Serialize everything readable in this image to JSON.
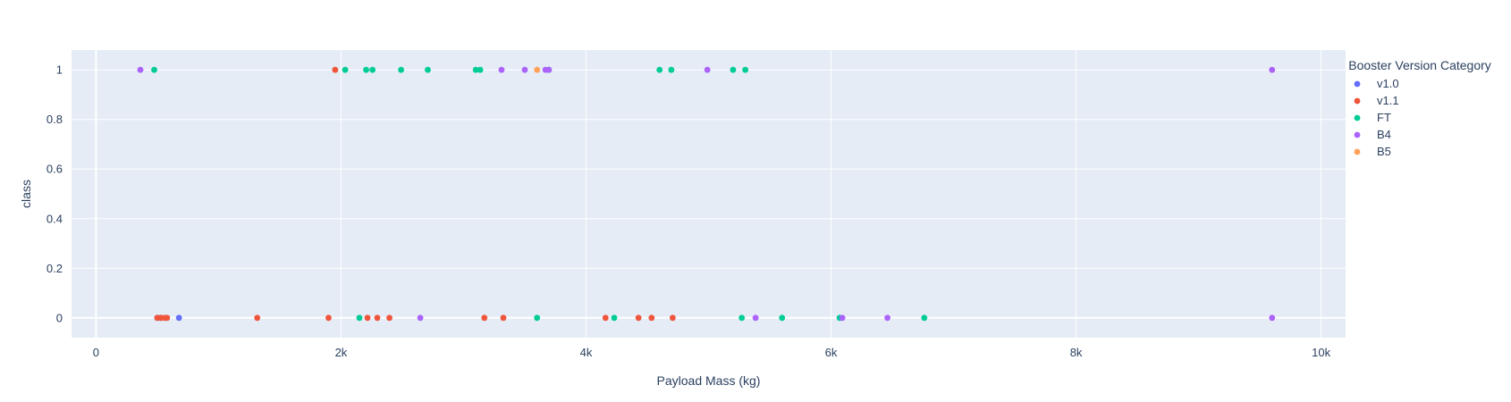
{
  "chart_data": {
    "type": "scatter",
    "title": "",
    "xlabel": "Payload Mass (kg)",
    "ylabel": "class",
    "xlim": [
      -200,
      10200
    ],
    "ylim": [
      -0.08,
      1.08
    ],
    "x_ticks": [
      0,
      2000,
      4000,
      6000,
      8000,
      10000
    ],
    "x_tick_labels": [
      "0",
      "2k",
      "4k",
      "6k",
      "8k",
      "10k"
    ],
    "y_ticks": [
      0,
      0.2,
      0.4,
      0.6,
      0.8,
      1
    ],
    "y_tick_labels": [
      "0",
      "0.2",
      "0.4",
      "0.6",
      "0.8",
      "1"
    ],
    "grid": true,
    "background_color": "#e5ecf6",
    "legend_title": "Booster Version Category",
    "legend_position": "right",
    "series": [
      {
        "name": "v1.0",
        "color": "#636efa",
        "x": [
          525,
          677,
          500
        ],
        "y": [
          0,
          0,
          0
        ]
      },
      {
        "name": "v1.1",
        "color": "#EF553B",
        "x": [
          500,
          530,
          560,
          580,
          1316,
          1898,
          1952,
          2216,
          2296,
          2395,
          3170,
          3325,
          4159,
          4428,
          4535,
          4707
        ],
        "y": [
          0,
          0,
          0,
          0,
          0,
          0,
          1,
          0,
          0,
          0,
          0,
          0,
          0,
          0,
          0,
          0
        ]
      },
      {
        "name": "FT",
        "color": "#00cc96",
        "x": [
          475,
          2034,
          2205,
          2257,
          2490,
          2708,
          3100,
          3136,
          3696,
          4600,
          4696,
          5200,
          5300,
          2150,
          3600,
          4230,
          5271,
          5600,
          6070,
          6761
        ],
        "y": [
          1,
          1,
          1,
          1,
          1,
          1,
          1,
          1,
          1,
          1,
          1,
          1,
          1,
          0,
          0,
          0,
          0,
          0,
          0,
          0
        ]
      },
      {
        "name": "B4",
        "color": "#ab63fa",
        "x": [
          362,
          3310,
          3500,
          3669,
          3696,
          4990,
          9600,
          2647,
          5384,
          6092,
          6460,
          9600
        ],
        "y": [
          1,
          1,
          1,
          1,
          1,
          1,
          1,
          0,
          0,
          0,
          0,
          0
        ]
      },
      {
        "name": "B5",
        "color": "#FFA15A",
        "x": [
          3600
        ],
        "y": [
          1
        ]
      }
    ]
  }
}
